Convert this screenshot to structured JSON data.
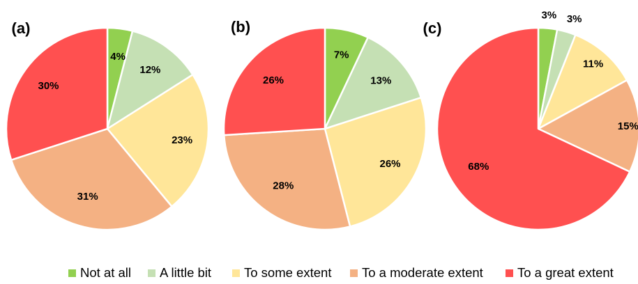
{
  "chart_data": [
    {
      "type": "pie",
      "panel_label": "(a)",
      "categories": [
        "Not at all",
        "A little bit",
        "To some extent",
        "To a moderate extent",
        "To a great extent"
      ],
      "values": [
        4,
        12,
        23,
        31,
        30
      ],
      "data_labels": [
        "4%",
        "12%",
        "23%",
        "31%",
        "30%"
      ]
    },
    {
      "type": "pie",
      "panel_label": "(b)",
      "categories": [
        "Not at all",
        "A little bit",
        "To some extent",
        "To a moderate extent",
        "To a great extent"
      ],
      "values": [
        7,
        13,
        26,
        28,
        26
      ],
      "data_labels": [
        "7%",
        "13%",
        "26%",
        "28%",
        "26%"
      ]
    },
    {
      "type": "pie",
      "panel_label": "(c)",
      "categories": [
        "Not at all",
        "A little bit",
        "To some extent",
        "To a moderate extent",
        "To a great extent"
      ],
      "values": [
        3,
        3,
        11,
        15,
        68
      ],
      "data_labels": [
        "3%",
        "3%",
        "11%",
        "15%",
        "68%"
      ]
    }
  ],
  "legend": {
    "placement": "bottom",
    "items": [
      {
        "label": "Not at all",
        "color": "#92d050"
      },
      {
        "label": "A little bit",
        "color": "#c5e0b4"
      },
      {
        "label": "To some extent",
        "color": "#ffe699"
      },
      {
        "label": "To a moderate extent",
        "color": "#f4b183"
      },
      {
        "label": "To a great extent",
        "color": "#ff5050"
      }
    ]
  }
}
